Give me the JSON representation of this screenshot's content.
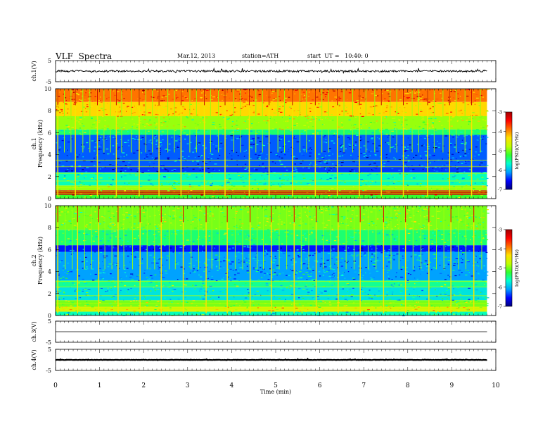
{
  "header": {
    "title": "VLF  Spectra",
    "date": "Mar.12, 2013",
    "station": "station=ATH",
    "start": "start  UT =   10:40: 0"
  },
  "chart_data": [
    {
      "type": "line",
      "panel": "ch1-waveform",
      "ylabel": "ch.1(V)",
      "ylim": [
        -5,
        5
      ],
      "yticks": [
        "5",
        "-5"
      ],
      "xlim": [
        0,
        10
      ],
      "x_end": 9.8,
      "baseline": 0,
      "amplitude_range": [
        -1,
        1
      ],
      "note_values": "noisy waveform near 0 V with frequent short spikes"
    },
    {
      "type": "heatmap",
      "panel": "ch1-spectrogram",
      "ylabel": "ch.1\nFrequency  (kHz)",
      "ylim": [
        0,
        10
      ],
      "yticks": [
        "0",
        "2",
        "4",
        "6",
        "8",
        "10"
      ],
      "xlim": [
        0,
        10
      ],
      "x_end": 9.8,
      "colorbar": {
        "label": "log(PSD)(V²/Hz)",
        "range": [
          -7,
          -3
        ],
        "ticks": [
          "-3",
          "-4",
          "-5",
          "-6",
          "-7"
        ]
      },
      "bands": [
        {
          "f": [
            0.0,
            0.35
          ],
          "level": -5.2
        },
        {
          "f": [
            0.35,
            0.75
          ],
          "level": -3.2
        },
        {
          "f": [
            0.75,
            1.2
          ],
          "level": -4.9
        },
        {
          "f": [
            1.2,
            2.4
          ],
          "level": -5.6
        },
        {
          "f": [
            2.4,
            3.0
          ],
          "level": -6.4
        },
        {
          "f": [
            3.0,
            5.8
          ],
          "level": -6.3
        },
        {
          "f": [
            5.8,
            6.3
          ],
          "level": -5.4
        },
        {
          "f": [
            6.3,
            7.5
          ],
          "level": -4.9
        },
        {
          "f": [
            7.5,
            8.8
          ],
          "level": -4.3
        },
        {
          "f": [
            8.8,
            10.0
          ],
          "level": -3.9
        }
      ],
      "bright_lines_kHz": [
        0.5,
        0.65,
        1.0,
        1.6,
        2.3,
        2.9,
        3.5
      ],
      "sferic_times_min": [
        0.05,
        0.2,
        0.35,
        0.45,
        0.62,
        0.78,
        0.95,
        1.1,
        1.25,
        1.38,
        1.5,
        1.72,
        1.9,
        2.05,
        2.2,
        2.35,
        2.55,
        2.7,
        2.85,
        3.05,
        3.2,
        3.38,
        3.52,
        3.7,
        3.85,
        4.05,
        4.2,
        4.4,
        4.55,
        4.7,
        4.85,
        5.05,
        5.2,
        5.38,
        5.55,
        5.7,
        5.9,
        6.05,
        6.2,
        6.4,
        6.55,
        6.75,
        6.9,
        7.05,
        7.25,
        7.4,
        7.6,
        7.75,
        7.9,
        8.1,
        8.25,
        8.45,
        8.6,
        8.8,
        8.95,
        9.1,
        9.3,
        9.45,
        9.65
      ]
    },
    {
      "type": "heatmap",
      "panel": "ch2-spectrogram",
      "ylabel": "ch.2\nFrequency  (kHz)",
      "ylim": [
        0,
        10
      ],
      "yticks": [
        "0",
        "2",
        "4",
        "6",
        "8",
        "10"
      ],
      "xlim": [
        0,
        10
      ],
      "x_end": 9.8,
      "colorbar": {
        "label": "log(PSD)(V²/Hz)",
        "range": [
          -7,
          -3
        ],
        "ticks": [
          "-3",
          "-4",
          "-5",
          "-6",
          "-7"
        ]
      },
      "bands": [
        {
          "f": [
            0.0,
            0.35
          ],
          "level": -5.6
        },
        {
          "f": [
            0.35,
            0.8
          ],
          "level": -4.6
        },
        {
          "f": [
            0.8,
            1.4
          ],
          "level": -5.0
        },
        {
          "f": [
            1.4,
            2.6
          ],
          "level": -5.8
        },
        {
          "f": [
            2.6,
            3.2
          ],
          "level": -5.5
        },
        {
          "f": [
            3.2,
            5.8
          ],
          "level": -6.1
        },
        {
          "f": [
            5.8,
            6.4
          ],
          "level": -6.5
        },
        {
          "f": [
            6.4,
            7.8
          ],
          "level": -5.4
        },
        {
          "f": [
            7.8,
            10.0
          ],
          "level": -5.0
        }
      ],
      "bright_lines_kHz": [
        0.6,
        1.1,
        1.8,
        2.6,
        3.1
      ],
      "sferic_times_min": [
        0.05,
        0.22,
        0.38,
        0.5,
        0.66,
        0.82,
        0.98,
        1.12,
        1.28,
        1.42,
        1.55,
        1.75,
        1.92,
        2.08,
        2.25,
        2.4,
        2.58,
        2.72,
        2.9,
        3.08,
        3.25,
        3.42,
        3.55,
        3.72,
        3.9,
        4.08,
        4.25,
        4.42,
        4.58,
        4.72,
        4.9,
        5.08,
        5.25,
        5.42,
        5.58,
        5.75,
        5.92,
        6.08,
        6.25,
        6.42,
        6.6,
        6.78,
        6.92,
        7.1,
        7.28,
        7.45,
        7.62,
        7.8,
        7.95,
        8.12,
        8.3,
        8.48,
        8.65,
        8.82,
        8.98,
        9.15,
        9.32,
        9.5,
        9.68
      ]
    },
    {
      "type": "line",
      "panel": "ch3-waveform",
      "ylabel": "ch.3(V)",
      "ylim": [
        -5,
        5
      ],
      "yticks": [
        "5",
        "-5"
      ],
      "xlim": [
        0,
        10
      ],
      "x_end": 9.8,
      "baseline": 0,
      "amplitude_range": [
        0,
        0
      ]
    },
    {
      "type": "line",
      "panel": "ch4-waveform",
      "ylabel": "ch.4(V)",
      "ylim": [
        -5,
        5
      ],
      "yticks": [
        "5",
        "-5"
      ],
      "xlim": [
        0,
        10
      ],
      "x_end": 9.8,
      "baseline": 0,
      "amplitude_range": [
        -0.2,
        0.2
      ],
      "xlabel": "Time  (min)",
      "xticks": [
        "0",
        "1",
        "2",
        "3",
        "4",
        "5",
        "6",
        "7",
        "8",
        "9",
        "10"
      ]
    }
  ],
  "colors": {
    "colormap": [
      "#00007a",
      "#0000ff",
      "#00a0ff",
      "#00ffd0",
      "#30ff30",
      "#c0ff00",
      "#ffe000",
      "#ff7000",
      "#ff0000",
      "#a00000"
    ],
    "axis": "#000000",
    "trace": "#000000"
  }
}
